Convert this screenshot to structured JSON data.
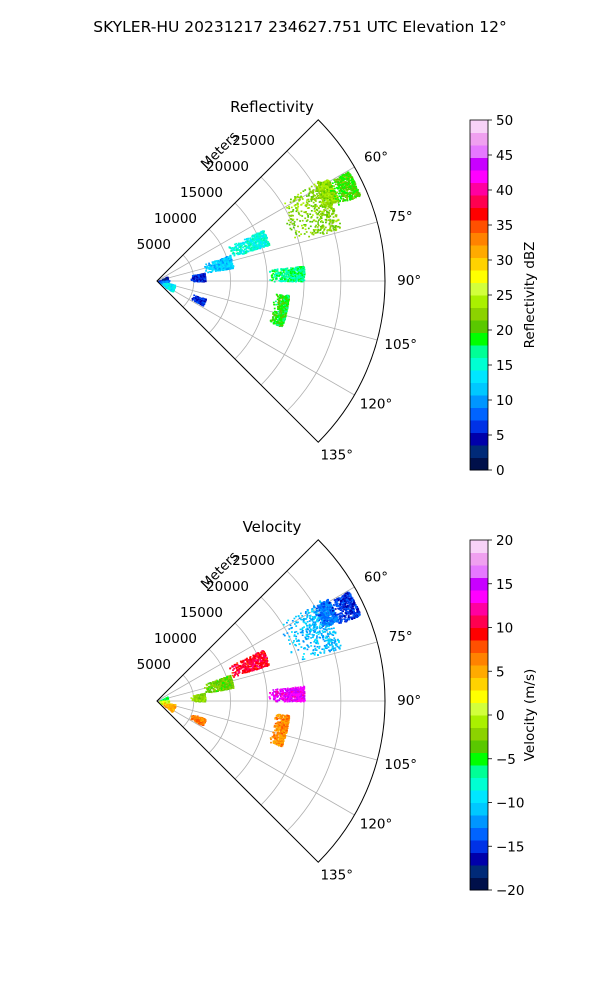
{
  "figure_title": "SKYLER-HU  20231217  234627.751 UTC Elevation 12°",
  "chart_data": [
    {
      "type": "heatmap",
      "subtype": "polar-sector",
      "title": "Reflectivity",
      "radial_label": "Meters",
      "radial_ticks": [
        5000,
        10000,
        15000,
        20000,
        25000
      ],
      "radial_tick_labels": [
        "5000",
        "10000",
        "15000",
        "20000",
        "25000"
      ],
      "rlim": [
        0,
        31000
      ],
      "theta_range_deg": [
        45,
        135
      ],
      "theta_ticks_deg": [
        60,
        75,
        90,
        105,
        120,
        135
      ],
      "theta_tick_labels": [
        "60°",
        "75°",
        "90°",
        "105°",
        "120°",
        "135°"
      ],
      "grid": true,
      "colorbar": {
        "label": "Reflectivity dBZ",
        "range": [
          0,
          50
        ],
        "ticks": [
          "0",
          "5",
          "10",
          "15",
          "20",
          "25",
          "30",
          "35",
          "40",
          "45",
          "50"
        ],
        "colors": [
          "#00104a",
          "#002a78",
          "#0000aa",
          "#0032e6",
          "#0064ff",
          "#0096ff",
          "#00c8ff",
          "#00e6ff",
          "#00ffd2",
          "#00ff96",
          "#00ff00",
          "#5ac800",
          "#8cd200",
          "#aaf000",
          "#d2ff3c",
          "#ffff00",
          "#ffd200",
          "#ffaa00",
          "#ff8200",
          "#ff5000",
          "#ff0000",
          "#ff0050",
          "#ff00a0",
          "#ff00ff",
          "#c800ff",
          "#e678ff",
          "#f0a0f0",
          "#f8d2f8"
        ]
      },
      "echo_regions": [
        {
          "az": [
            58,
            74
          ],
          "r": [
            19000,
            26000
          ],
          "value": 22
        },
        {
          "az": [
            59,
            66
          ],
          "r": [
            24500,
            27000
          ],
          "value": 23
        },
        {
          "az": [
            64,
            72
          ],
          "r": [
            10500,
            16000
          ],
          "value": 15
        },
        {
          "az": [
            70,
            80
          ],
          "r": [
            6500,
            10500
          ],
          "value": 12
        },
        {
          "az": [
            80,
            90
          ],
          "r": [
            4500,
            6500
          ],
          "value": 6
        },
        {
          "az": [
            60,
            67
          ],
          "r": [
            26500,
            30000
          ],
          "value": 20
        },
        {
          "az": [
            84,
            90
          ],
          "r": [
            15000,
            20000
          ],
          "value": 17
        },
        {
          "az": [
            65,
            90
          ],
          "r": [
            0,
            1500
          ],
          "value": 4
        },
        {
          "az": [
            85,
            120
          ],
          "r": [
            100,
            1600
          ],
          "value": 9
        },
        {
          "az": [
            100,
            125
          ],
          "r": [
            800,
            2500
          ],
          "value": 13
        },
        {
          "az": [
            110,
            118
          ],
          "r": [
            5000,
            7000
          ],
          "value": 6
        },
        {
          "az": [
            96,
            110
          ],
          "r": [
            16000,
            18000
          ],
          "value": 19
        }
      ]
    },
    {
      "type": "heatmap",
      "subtype": "polar-sector",
      "title": "Velocity",
      "radial_label": "Meters",
      "radial_ticks": [
        5000,
        10000,
        15000,
        20000,
        25000
      ],
      "radial_tick_labels": [
        "5000",
        "10000",
        "15000",
        "20000",
        "25000"
      ],
      "rlim": [
        0,
        31000
      ],
      "theta_range_deg": [
        45,
        135
      ],
      "theta_ticks_deg": [
        60,
        75,
        90,
        105,
        120,
        135
      ],
      "theta_tick_labels": [
        "60°",
        "75°",
        "90°",
        "105°",
        "120°",
        "135°"
      ],
      "grid": true,
      "colorbar": {
        "label": "Velocity (m/s)",
        "range": [
          -20,
          20
        ],
        "ticks": [
          "−20",
          "−15",
          "−10",
          "−5",
          "0",
          "5",
          "10",
          "15",
          "20"
        ],
        "colors": [
          "#00104a",
          "#002a78",
          "#0000aa",
          "#0032e6",
          "#0064ff",
          "#0096ff",
          "#00c8ff",
          "#00e6ff",
          "#00ffd2",
          "#00ff96",
          "#00ff00",
          "#5ac800",
          "#8cd200",
          "#aaf000",
          "#d2ff3c",
          "#ffff00",
          "#ffd200",
          "#ffaa00",
          "#ff8200",
          "#ff5000",
          "#ff0000",
          "#ff0050",
          "#ff00a0",
          "#ff00ff",
          "#c800ff",
          "#e678ff",
          "#f0a0f0",
          "#f8d2f8"
        ]
      },
      "echo_regions": [
        {
          "az": [
            58,
            74
          ],
          "r": [
            19000,
            26000
          ],
          "value": -11
        },
        {
          "az": [
            59,
            66
          ],
          "r": [
            24500,
            27000
          ],
          "value": -13
        },
        {
          "az": [
            64,
            72
          ],
          "r": [
            10500,
            16000
          ],
          "value": 10
        },
        {
          "az": [
            70,
            80
          ],
          "r": [
            6500,
            10500
          ],
          "value": -3
        },
        {
          "az": [
            80,
            90
          ],
          "r": [
            4500,
            6500
          ],
          "value": -2
        },
        {
          "az": [
            60,
            67
          ],
          "r": [
            26500,
            30000
          ],
          "value": -15
        },
        {
          "az": [
            84,
            90
          ],
          "r": [
            15000,
            20000
          ],
          "value": 14
        },
        {
          "az": [
            65,
            90
          ],
          "r": [
            0,
            1500
          ],
          "value": -6
        },
        {
          "az": [
            85,
            120
          ],
          "r": [
            100,
            1600
          ],
          "value": 1
        },
        {
          "az": [
            100,
            125
          ],
          "r": [
            800,
            2500
          ],
          "value": 5
        },
        {
          "az": [
            110,
            118
          ],
          "r": [
            5000,
            7000
          ],
          "value": 7
        },
        {
          "az": [
            96,
            110
          ],
          "r": [
            16000,
            18000
          ],
          "value": 6
        }
      ]
    }
  ]
}
